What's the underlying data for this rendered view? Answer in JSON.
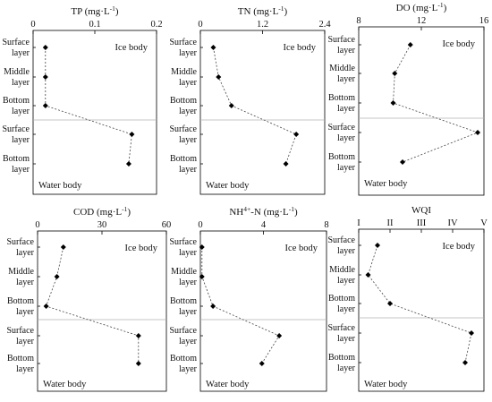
{
  "row_labels": [
    [
      "Surface",
      "layer"
    ],
    [
      "Middle",
      "layer"
    ],
    [
      "Bottom",
      "layer"
    ],
    [
      "Surface",
      "layer"
    ],
    [
      "Bottom",
      "layer"
    ]
  ],
  "ice_label": "Ice body",
  "water_label": "Water body",
  "chart_data": [
    {
      "type": "scatter",
      "title": "TP (mg·L",
      "title_sup": "-1",
      "title_end": ")",
      "xlim": [
        0,
        0.2
      ],
      "ticks": [
        0,
        0.1,
        0.2
      ],
      "tick_labels": [
        "0",
        "0.1",
        "0.2"
      ],
      "values": [
        0.02,
        0.02,
        0.02,
        0.16,
        0.155
      ]
    },
    {
      "type": "scatter",
      "title": "TN (mg·L",
      "title_sup": "-1",
      "title_end": ")",
      "xlim": [
        0,
        2.4
      ],
      "ticks": [
        0,
        1.2,
        2.4
      ],
      "tick_labels": [
        "0",
        "1.2",
        "2.4"
      ],
      "values": [
        0.25,
        0.35,
        0.6,
        1.85,
        1.65
      ]
    },
    {
      "type": "scatter",
      "title": "DO (mg·L",
      "title_sup": "-1",
      "title_end": ")",
      "xlim": [
        8,
        16
      ],
      "ticks": [
        8,
        12,
        16
      ],
      "tick_labels": [
        "8",
        "12",
        "16"
      ],
      "values": [
        11.3,
        10.3,
        10.2,
        15.6,
        10.8
      ]
    },
    {
      "type": "scatter",
      "title": "COD (mg·L",
      "title_sup": "-1",
      "title_end": ")",
      "xlim": [
        0,
        60
      ],
      "ticks": [
        0,
        30,
        60
      ],
      "tick_labels": [
        "0",
        "30",
        "60"
      ],
      "values": [
        12,
        9,
        4,
        47,
        47
      ]
    },
    {
      "type": "scatter",
      "title": "NH",
      "title_sup": "4+",
      "title_end": "-N (mg·L",
      "title_sup2": "-1",
      "title_end2": ")",
      "xlim": [
        0,
        8
      ],
      "ticks": [
        0,
        4,
        8
      ],
      "tick_labels": [
        "0",
        "4",
        "8"
      ],
      "values": [
        0.1,
        0.1,
        0.8,
        5.0,
        3.9
      ]
    },
    {
      "type": "scatter",
      "title": "WQI",
      "xlim": [
        1,
        5
      ],
      "ticks": [
        1,
        2,
        3,
        4,
        5
      ],
      "tick_labels": [
        "I",
        "II",
        "III",
        "IV",
        "V"
      ],
      "values": [
        1.6,
        1.3,
        2.0,
        4.6,
        4.4
      ]
    }
  ]
}
